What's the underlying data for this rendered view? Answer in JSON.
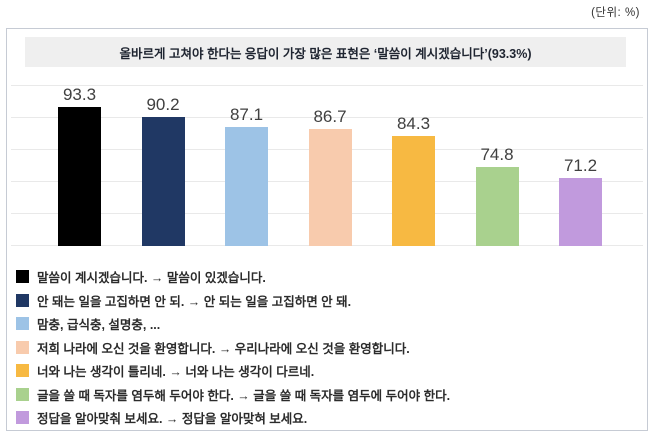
{
  "unit_label": "(단위: %)",
  "chart_data": {
    "type": "bar",
    "title": "올바르게 고쳐야 한다는 응답이 가장 많은 표현은 ‘말씀이 계시겠습니다’(93.3%)",
    "unit": "%",
    "categories": [
      "말씀이 계시겠습니다. → 말씀이 있겠습니다.",
      "안 돼는 일을 고집하면 안 되. → 안 되는 일을 고집하면 안 돼.",
      "맘충, 급식충, 설명충, ...",
      "저희 나라에 오신 것을 환영합니다. → 우리나라에 오신 것을 환영합니다.",
      "너와 나는 생각이 틀리네. → 너와 나는 생각이 다르네.",
      "글을 쓸 때 독자를 염두해 두어야 한다. → 글을 쓸 때 독자를 염두에 두어야 한다.",
      "정답을 알아맞춰 보세요. → 정답을 알아맞혀 보세요."
    ],
    "values": [
      93.3,
      90.2,
      87.1,
      86.7,
      84.3,
      74.8,
      71.2
    ],
    "colors": [
      "#000000",
      "#203864",
      "#9dc3e6",
      "#f8cbad",
      "#f7b942",
      "#a9d18e",
      "#c19add"
    ],
    "ylim": [
      50,
      100
    ],
    "grid_step": 10,
    "grid": true,
    "value_labels": true,
    "legend_position": "bottom",
    "xlabel": "",
    "ylabel": ""
  }
}
